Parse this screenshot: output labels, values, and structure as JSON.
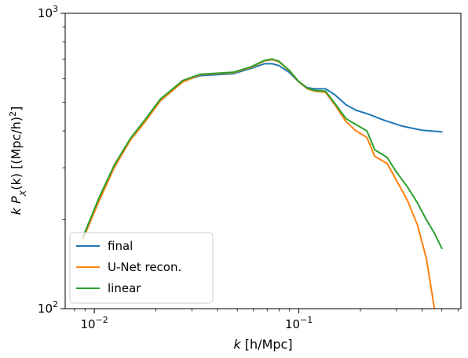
{
  "chart_data": {
    "type": "line",
    "xscale": "log",
    "yscale": "log",
    "xlim": [
      0.0072,
      0.62
    ],
    "ylim": [
      100,
      1000
    ],
    "xlabel": {
      "var": "k",
      "unit": " [h/Mpc]"
    },
    "ylabel": {
      "k": "k",
      "P": "P",
      "sub": "X",
      "arg": "(k)",
      "unit": " [(Mpc/h)",
      "sup": "2",
      "close": "]"
    },
    "x_ticks": [
      {
        "value": 0.01,
        "base": "10",
        "exp": "−2"
      },
      {
        "value": 0.1,
        "base": "10",
        "exp": "−1"
      }
    ],
    "y_ticks": [
      {
        "value": 100,
        "base": "10",
        "exp": "2"
      },
      {
        "value": 1000,
        "base": "10",
        "exp": "3"
      }
    ],
    "grid": false,
    "legend_position": "lower-left",
    "series": [
      {
        "name": "final",
        "color": "#1f77b4",
        "points": [
          [
            0.0088,
            175
          ],
          [
            0.0105,
            235
          ],
          [
            0.0125,
            305
          ],
          [
            0.015,
            375
          ],
          [
            0.0175,
            430
          ],
          [
            0.021,
            510
          ],
          [
            0.027,
            590
          ],
          [
            0.033,
            615
          ],
          [
            0.048,
            625
          ],
          [
            0.058,
            650
          ],
          [
            0.068,
            675
          ],
          [
            0.074,
            675
          ],
          [
            0.08,
            665
          ],
          [
            0.09,
            630
          ],
          [
            0.1,
            585
          ],
          [
            0.11,
            560
          ],
          [
            0.12,
            555
          ],
          [
            0.135,
            555
          ],
          [
            0.15,
            530
          ],
          [
            0.17,
            490
          ],
          [
            0.19,
            470
          ],
          [
            0.22,
            455
          ],
          [
            0.26,
            435
          ],
          [
            0.32,
            415
          ],
          [
            0.4,
            402
          ],
          [
            0.5,
            397
          ]
        ]
      },
      {
        "name": "U-Net recon.",
        "color": "#ff7f0e",
        "points": [
          [
            0.0088,
            172
          ],
          [
            0.0105,
            230
          ],
          [
            0.0125,
            300
          ],
          [
            0.015,
            372
          ],
          [
            0.0175,
            425
          ],
          [
            0.021,
            505
          ],
          [
            0.027,
            585
          ],
          [
            0.033,
            620
          ],
          [
            0.048,
            630
          ],
          [
            0.058,
            655
          ],
          [
            0.068,
            690
          ],
          [
            0.074,
            697
          ],
          [
            0.08,
            685
          ],
          [
            0.09,
            638
          ],
          [
            0.1,
            585
          ],
          [
            0.11,
            555
          ],
          [
            0.12,
            545
          ],
          [
            0.135,
            540
          ],
          [
            0.15,
            490
          ],
          [
            0.17,
            430
          ],
          [
            0.19,
            400
          ],
          [
            0.215,
            380
          ],
          [
            0.235,
            328
          ],
          [
            0.27,
            310
          ],
          [
            0.3,
            272
          ],
          [
            0.34,
            232
          ],
          [
            0.38,
            192
          ],
          [
            0.42,
            148
          ],
          [
            0.46,
            100
          ]
        ]
      },
      {
        "name": "linear",
        "color": "#2ca02c",
        "points": [
          [
            0.0088,
            175
          ],
          [
            0.0105,
            236
          ],
          [
            0.0125,
            306
          ],
          [
            0.015,
            377
          ],
          [
            0.0175,
            432
          ],
          [
            0.021,
            512
          ],
          [
            0.027,
            592
          ],
          [
            0.033,
            622
          ],
          [
            0.048,
            632
          ],
          [
            0.058,
            658
          ],
          [
            0.068,
            693
          ],
          [
            0.074,
            700
          ],
          [
            0.08,
            688
          ],
          [
            0.09,
            640
          ],
          [
            0.1,
            587
          ],
          [
            0.11,
            558
          ],
          [
            0.12,
            548
          ],
          [
            0.135,
            545
          ],
          [
            0.15,
            495
          ],
          [
            0.17,
            440
          ],
          [
            0.19,
            420
          ],
          [
            0.215,
            400
          ],
          [
            0.235,
            345
          ],
          [
            0.27,
            325
          ],
          [
            0.3,
            290
          ],
          [
            0.34,
            258
          ],
          [
            0.38,
            228
          ],
          [
            0.42,
            200
          ],
          [
            0.46,
            180
          ],
          [
            0.5,
            160
          ]
        ]
      }
    ]
  }
}
